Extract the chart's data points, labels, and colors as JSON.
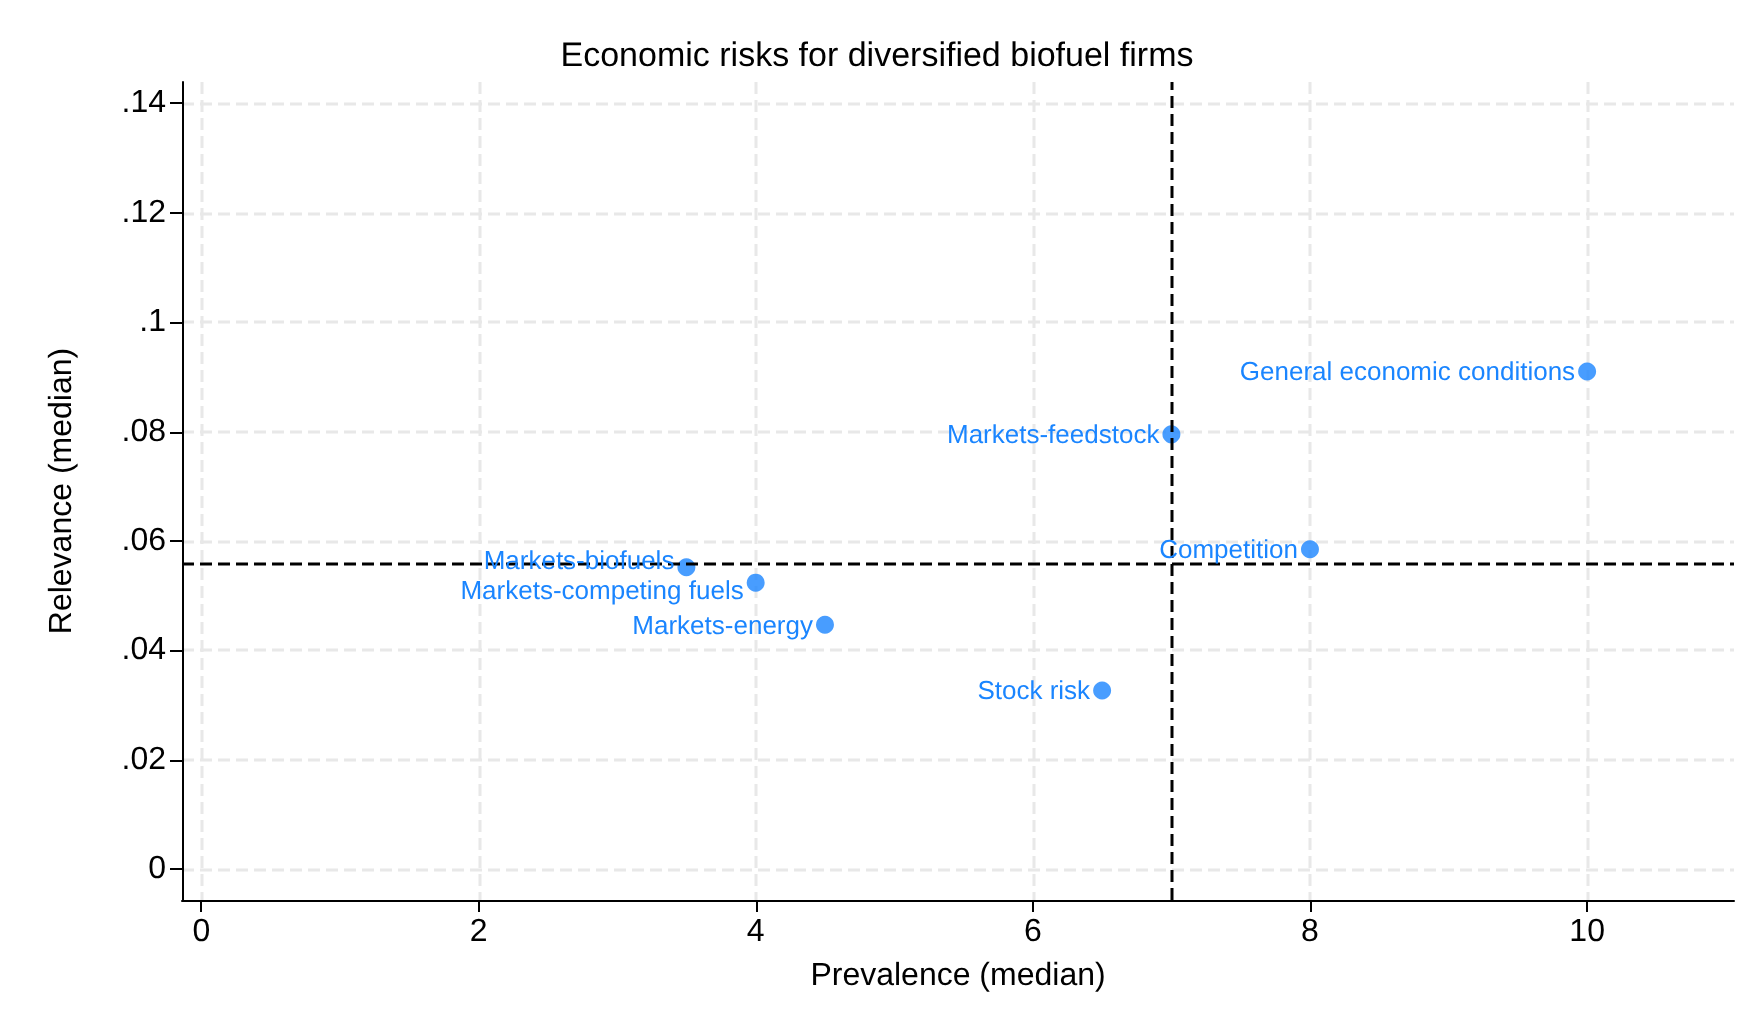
{
  "chart_data": {
    "type": "scatter",
    "title": "Economic risks for diversified biofuel firms",
    "xlabel": "Prevalence (median)",
    "ylabel": "Relevance (median)",
    "x": [
      10,
      7,
      8,
      3.5,
      4,
      4.5,
      6.5
    ],
    "series": [
      {
        "color": "#1a85ff",
        "values": [
          0.091,
          0.0795,
          0.0585,
          0.0552,
          0.0524,
          0.0447,
          0.0327
        ]
      }
    ],
    "annotations": [
      {
        "text": "General economic conditions",
        "x": 10,
        "y": 0.091
      },
      {
        "text": "Markets-feedstock",
        "x": 7,
        "y": 0.0795
      },
      {
        "text": "Competition",
        "x": 8,
        "y": 0.0585
      },
      {
        "text": "Markets-biofuels",
        "x": 3.5,
        "y": 0.0552
      },
      {
        "text": "Markets-competing fuels",
        "x": 4,
        "y": 0.0524
      },
      {
        "text": "Markets-energy",
        "x": 4.5,
        "y": 0.0447
      },
      {
        "text": "Stock risk",
        "x": 6.5,
        "y": 0.0327
      }
    ],
    "ref_lines": [
      {
        "axis": "x",
        "value": 7,
        "color": "#000000",
        "line_style": "dashed"
      },
      {
        "axis": "y",
        "value": 0.0559,
        "color": "#000000",
        "line_style": "dashed"
      }
    ],
    "xlim": [
      -0.14,
      11.06
    ],
    "xticks": [
      0,
      2,
      4,
      6,
      8,
      10
    ],
    "ylim": [
      -0.0056,
      0.1439
    ],
    "yticks": [
      {
        "value": 0,
        "label": "0"
      },
      {
        "value": 0.02,
        "label": ".02"
      },
      {
        "value": 0.04,
        "label": ".04"
      },
      {
        "value": 0.06,
        "label": ".06"
      },
      {
        "value": 0.08,
        "label": ".08"
      },
      {
        "value": 0.1,
        "label": ".1"
      },
      {
        "value": 0.12,
        "label": ".12"
      },
      {
        "value": 0.14,
        "label": ".14"
      }
    ],
    "grid": true,
    "marker": "circle"
  }
}
